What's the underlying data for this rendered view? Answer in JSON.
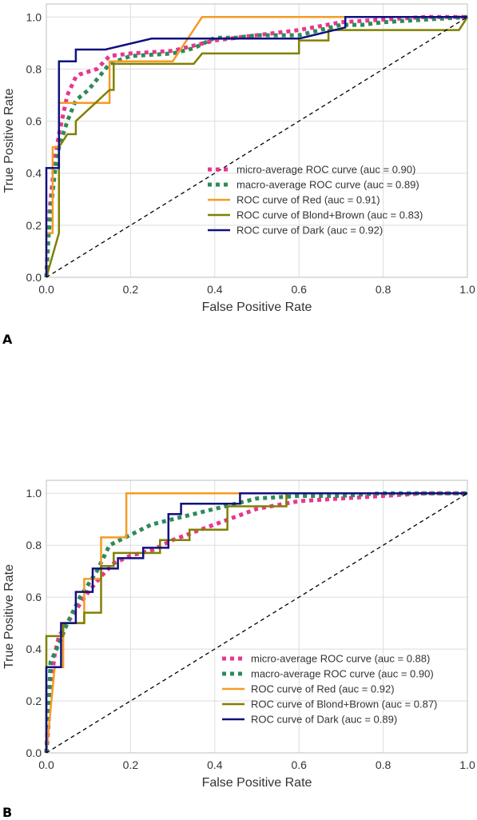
{
  "panels": {
    "a": {
      "letter": "A"
    },
    "b": {
      "letter": "B"
    }
  },
  "colors": {
    "micro": "#e8368f",
    "macro": "#2e8b57",
    "red": "#f59b23",
    "blond_brown": "#808000",
    "dark": "#101080",
    "diagonal": "#000000",
    "grid": "#dddddd",
    "axis": "#bfbfbf"
  },
  "chart_data": [
    {
      "type": "line",
      "panel": "A",
      "xlabel": "False Positive Rate",
      "ylabel": "True Positive Rate",
      "xlim": [
        0.0,
        1.0
      ],
      "ylim": [
        0.0,
        1.05
      ],
      "xticks": [
        "0.0",
        "0.2",
        "0.4",
        "0.6",
        "0.8",
        "1.0"
      ],
      "yticks": [
        "0.0",
        "0.2",
        "0.4",
        "0.6",
        "0.8",
        "1.0"
      ],
      "grid": true,
      "legend": "lower-right",
      "series": [
        {
          "name": "micro-average ROC curve (auc = 0.90)",
          "key": "micro",
          "style": "dotted",
          "x": [
            0,
            0.005,
            0.01,
            0.02,
            0.03,
            0.05,
            0.07,
            0.08,
            0.12,
            0.15,
            0.2,
            0.3,
            0.35,
            0.4,
            0.5,
            0.6,
            0.7,
            0.8,
            0.9,
            1.0
          ],
          "y": [
            0,
            0.2,
            0.3,
            0.45,
            0.55,
            0.7,
            0.77,
            0.78,
            0.8,
            0.85,
            0.86,
            0.87,
            0.89,
            0.91,
            0.93,
            0.95,
            0.98,
            0.99,
            1.0,
            1.0
          ]
        },
        {
          "name": "macro-average ROC curve (auc = 0.89)",
          "key": "macro",
          "style": "dotted",
          "x": [
            0,
            0.005,
            0.01,
            0.02,
            0.03,
            0.05,
            0.07,
            0.1,
            0.15,
            0.2,
            0.3,
            0.35,
            0.4,
            0.45,
            0.5,
            0.6,
            0.65,
            0.7,
            0.75,
            0.8,
            0.9,
            1.0
          ],
          "y": [
            0,
            0.15,
            0.25,
            0.4,
            0.5,
            0.6,
            0.68,
            0.72,
            0.82,
            0.85,
            0.86,
            0.88,
            0.92,
            0.92,
            0.93,
            0.93,
            0.95,
            0.97,
            0.97,
            0.98,
            0.99,
            1.0
          ]
        },
        {
          "name": "ROC curve of Red (auc = 0.91)",
          "key": "red",
          "style": "solid",
          "x": [
            0,
            0,
            0.015,
            0.015,
            0.03,
            0.03,
            0.15,
            0.15,
            0.3,
            0.37,
            0.6,
            0.7,
            1.0
          ],
          "y": [
            0,
            0.17,
            0.17,
            0.5,
            0.5,
            0.67,
            0.67,
            0.83,
            0.83,
            1.0,
            1.0,
            1.0,
            1.0
          ]
        },
        {
          "name": "ROC curve of Blond+Brown (auc = 0.83)",
          "key": "blond_brown",
          "style": "solid",
          "x": [
            0,
            0.03,
            0.03,
            0.05,
            0.07,
            0.07,
            0.15,
            0.16,
            0.16,
            0.2,
            0.35,
            0.37,
            0.6,
            0.6,
            0.67,
            0.67,
            0.7,
            0.98,
            1.0
          ],
          "y": [
            0,
            0.17,
            0.5,
            0.55,
            0.55,
            0.6,
            0.72,
            0.72,
            0.82,
            0.82,
            0.82,
            0.86,
            0.86,
            0.91,
            0.91,
            0.95,
            0.95,
            0.95,
            1.0
          ]
        },
        {
          "name": "ROC curve of Dark (auc = 0.92)",
          "key": "dark",
          "style": "solid",
          "x": [
            0,
            0,
            0.03,
            0.03,
            0.07,
            0.07,
            0.14,
            0.25,
            0.4,
            0.5,
            0.6,
            0.71,
            0.71,
            0.8,
            1.0
          ],
          "y": [
            0,
            0.42,
            0.42,
            0.83,
            0.83,
            0.875,
            0.875,
            0.917,
            0.917,
            0.917,
            0.917,
            0.96,
            1.0,
            1.0,
            1.0
          ]
        },
        {
          "name": "",
          "key": "diagonal",
          "style": "dashed",
          "x": [
            0,
            1
          ],
          "y": [
            0,
            1
          ]
        }
      ]
    },
    {
      "type": "line",
      "panel": "B",
      "xlabel": "False Positive Rate",
      "ylabel": "True Positive Rate",
      "xlim": [
        0.0,
        1.0
      ],
      "ylim": [
        0.0,
        1.05
      ],
      "xticks": [
        "0.0",
        "0.2",
        "0.4",
        "0.6",
        "0.8",
        "1.0"
      ],
      "yticks": [
        "0.0",
        "0.2",
        "0.4",
        "0.6",
        "0.8",
        "1.0"
      ],
      "grid": true,
      "legend": "lower-right",
      "series": [
        {
          "name": "micro-average ROC curve (auc = 0.88)",
          "key": "micro",
          "style": "dotted",
          "x": [
            0,
            0.005,
            0.01,
            0.02,
            0.03,
            0.05,
            0.07,
            0.1,
            0.13,
            0.16,
            0.2,
            0.25,
            0.3,
            0.4,
            0.5,
            0.6,
            0.7,
            0.8,
            0.9,
            1.0
          ],
          "y": [
            0,
            0.1,
            0.25,
            0.38,
            0.45,
            0.5,
            0.55,
            0.62,
            0.68,
            0.73,
            0.76,
            0.78,
            0.82,
            0.88,
            0.94,
            0.97,
            0.98,
            0.99,
            1.0,
            1.0
          ]
        },
        {
          "name": "macro-average ROC curve (auc = 0.90)",
          "key": "macro",
          "style": "dotted",
          "x": [
            0,
            0.01,
            0.03,
            0.05,
            0.08,
            0.12,
            0.15,
            0.2,
            0.25,
            0.3,
            0.4,
            0.5,
            0.6,
            0.7,
            0.8,
            0.9,
            1.0
          ],
          "y": [
            0,
            0.35,
            0.42,
            0.5,
            0.6,
            0.7,
            0.8,
            0.84,
            0.88,
            0.9,
            0.94,
            0.98,
            0.99,
            0.99,
            1.0,
            1.0,
            1.0
          ]
        },
        {
          "name": "ROC curve of Red (auc = 0.92)",
          "key": "red",
          "style": "solid",
          "x": [
            0,
            0.02,
            0.02,
            0.04,
            0.04,
            0.07,
            0.07,
            0.09,
            0.09,
            0.13,
            0.13,
            0.19,
            0.19,
            0.45,
            1.0
          ],
          "y": [
            0,
            0.33,
            0.33,
            0.33,
            0.5,
            0.5,
            0.5,
            0.5,
            0.67,
            0.67,
            0.83,
            0.83,
            1.0,
            1.0,
            1.0
          ]
        },
        {
          "name": "ROC curve of Blond+Brown (auc = 0.87)",
          "key": "blond_brown",
          "style": "solid",
          "x": [
            0,
            0,
            0.04,
            0.04,
            0.09,
            0.09,
            0.13,
            0.13,
            0.16,
            0.16,
            0.27,
            0.27,
            0.34,
            0.34,
            0.43,
            0.43,
            0.57,
            0.57,
            1.0
          ],
          "y": [
            0,
            0.45,
            0.45,
            0.5,
            0.5,
            0.54,
            0.54,
            0.72,
            0.72,
            0.77,
            0.77,
            0.82,
            0.82,
            0.86,
            0.86,
            0.95,
            0.95,
            1.0,
            1.0
          ]
        },
        {
          "name": "ROC curve of Dark (auc = 0.89)",
          "key": "dark",
          "style": "solid",
          "x": [
            0,
            0,
            0.035,
            0.035,
            0.07,
            0.07,
            0.11,
            0.11,
            0.17,
            0.17,
            0.23,
            0.23,
            0.29,
            0.29,
            0.32,
            0.32,
            0.46,
            0.46,
            1.0
          ],
          "y": [
            0,
            0.33,
            0.33,
            0.5,
            0.5,
            0.62,
            0.62,
            0.71,
            0.71,
            0.75,
            0.75,
            0.79,
            0.79,
            0.92,
            0.92,
            0.96,
            0.96,
            1.0,
            1.0
          ]
        },
        {
          "name": "",
          "key": "diagonal",
          "style": "dashed",
          "x": [
            0,
            1
          ],
          "y": [
            0,
            1
          ]
        }
      ]
    }
  ]
}
